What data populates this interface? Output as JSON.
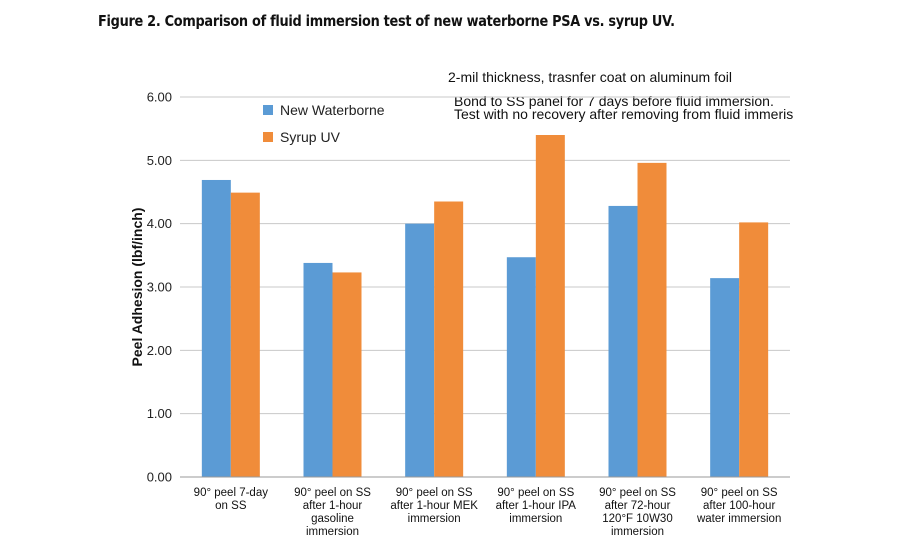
{
  "figure": {
    "title": "Figure 2. Comparison of fluid immersion test of new waterborne PSA vs. syrup UV.",
    "notes": [
      "2-mil thickness, trasnfer coat on aluminum foil",
      "Bond to SS panel for 7 days before fluid immersion.",
      "Test with no recovery after removing from fluid immeris"
    ]
  },
  "chart_data": {
    "type": "bar",
    "title": "Figure 2. Comparison of fluid immersion test of new waterborne PSA vs. syrup UV.",
    "xlabel": "",
    "ylabel": "Peel Adhesion (lbf/inch)",
    "ylim": [
      0,
      6
    ],
    "yticks": [
      0,
      1,
      2,
      3,
      4,
      5,
      6
    ],
    "ytick_labels": [
      "0.00",
      "1.00",
      "2.00",
      "3.00",
      "4.00",
      "5.00",
      "6.00"
    ],
    "grid": true,
    "legend_position": "top-left",
    "categories": [
      [
        "90° peel 7-day",
        "on SS"
      ],
      [
        "90° peel on SS",
        "after 1-hour",
        "gasoline",
        "immersion"
      ],
      [
        "90° peel on SS",
        "after 1-hour MEK",
        "immersion"
      ],
      [
        "90° peel on SS",
        "after 1-hour IPA",
        "immersion"
      ],
      [
        "90° peel on SS",
        "after 72-hour",
        "120°F 10W30",
        "immersion"
      ],
      [
        "90° peel on SS",
        "after 100-hour",
        "water immersion"
      ]
    ],
    "series": [
      {
        "name": "New Waterborne",
        "color": "#5B9BD5",
        "values": [
          4.69,
          3.38,
          4.0,
          3.47,
          4.28,
          3.14
        ]
      },
      {
        "name": "Syrup UV",
        "color": "#F08C3A",
        "values": [
          4.49,
          3.23,
          4.35,
          5.4,
          4.96,
          4.02
        ]
      }
    ]
  }
}
